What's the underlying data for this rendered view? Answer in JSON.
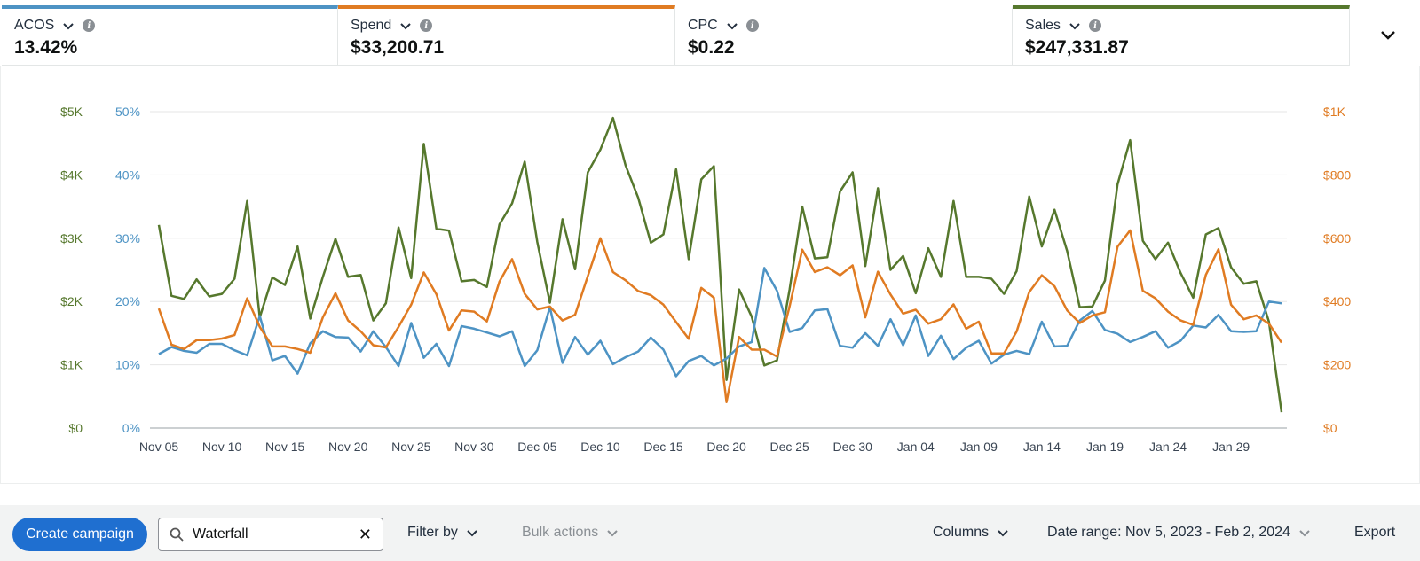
{
  "metrics": [
    {
      "label": "ACOS",
      "value": "13.42%",
      "color": "#4d93c4"
    },
    {
      "label": "Spend",
      "value": "$33,200.71",
      "color": "#e07b22"
    },
    {
      "label": "CPC",
      "value": "$0.22",
      "color": "#ffffff"
    },
    {
      "label": "Sales",
      "value": "$247,331.87",
      "color": "#56782d"
    }
  ],
  "icons": {
    "chevron": "chevron-down-icon",
    "info": "info-icon",
    "search": "search-icon",
    "clear": "close-icon"
  },
  "toolbar": {
    "create_label": "Create campaign",
    "search_value": "Waterfall",
    "filter_label": "Filter by",
    "bulk_label": "Bulk actions",
    "columns_label": "Columns",
    "date_range_label": "Date range: Nov 5, 2023 - Feb 2, 2024",
    "export_label": "Export"
  },
  "chart_data": {
    "type": "line",
    "x": [
      "Nov 05",
      "Nov 06",
      "Nov 07",
      "Nov 08",
      "Nov 09",
      "Nov 10",
      "Nov 11",
      "Nov 12",
      "Nov 13",
      "Nov 14",
      "Nov 15",
      "Nov 16",
      "Nov 17",
      "Nov 18",
      "Nov 19",
      "Nov 20",
      "Nov 21",
      "Nov 22",
      "Nov 23",
      "Nov 24",
      "Nov 25",
      "Nov 26",
      "Nov 27",
      "Nov 28",
      "Nov 29",
      "Nov 30",
      "Dec 01",
      "Dec 02",
      "Dec 03",
      "Dec 04",
      "Dec 05",
      "Dec 06",
      "Dec 07",
      "Dec 08",
      "Dec 09",
      "Dec 10",
      "Dec 11",
      "Dec 12",
      "Dec 13",
      "Dec 14",
      "Dec 15",
      "Dec 16",
      "Dec 17",
      "Dec 18",
      "Dec 19",
      "Dec 20",
      "Dec 21",
      "Dec 22",
      "Dec 23",
      "Dec 24",
      "Dec 25",
      "Dec 26",
      "Dec 27",
      "Dec 28",
      "Dec 29",
      "Dec 30",
      "Dec 31",
      "Jan 01",
      "Jan 02",
      "Jan 03",
      "Jan 04",
      "Jan 05",
      "Jan 06",
      "Jan 07",
      "Jan 08",
      "Jan 09",
      "Jan 10",
      "Jan 11",
      "Jan 12",
      "Jan 13",
      "Jan 14",
      "Jan 15",
      "Jan 16",
      "Jan 17",
      "Jan 18",
      "Jan 19",
      "Jan 20",
      "Jan 21",
      "Jan 22",
      "Jan 23",
      "Jan 24",
      "Jan 25",
      "Jan 26",
      "Jan 27",
      "Jan 28",
      "Jan 29",
      "Jan 30",
      "Jan 31",
      "Feb 01",
      "Feb 02"
    ],
    "tick_labels": [
      "Nov 05",
      "Nov 10",
      "Nov 15",
      "Nov 20",
      "Nov 25",
      "Nov 30",
      "Dec 05",
      "Dec 10",
      "Dec 15",
      "Dec 20",
      "Dec 25",
      "Dec 30",
      "Jan 04",
      "Jan 09",
      "Jan 14",
      "Jan 19",
      "Jan 24",
      "Jan 29"
    ],
    "axes": {
      "sales": {
        "ticks": [
          "$0",
          "$1K",
          "$2K",
          "$3K",
          "$4K",
          "$5K"
        ],
        "ylim": [
          0,
          5000
        ]
      },
      "acos": {
        "ticks": [
          "0%",
          "10%",
          "20%",
          "30%",
          "40%",
          "50%"
        ],
        "ylim": [
          0,
          50
        ]
      },
      "spend": {
        "ticks": [
          "$0",
          "$200",
          "$400",
          "$600",
          "$800",
          "$1K"
        ],
        "ylim": [
          0,
          1000
        ]
      }
    },
    "grid": true,
    "series": [
      {
        "name": "Sales",
        "axis": "sales",
        "color": "#56782d",
        "values": [
          3210,
          2090,
          2040,
          2350,
          2080,
          2120,
          2360,
          3590,
          1750,
          2380,
          2260,
          2870,
          1730,
          2390,
          2990,
          2390,
          2420,
          1700,
          1970,
          3170,
          2370,
          4490,
          3150,
          3120,
          2320,
          2340,
          2230,
          3220,
          3550,
          4210,
          2940,
          1980,
          3300,
          2510,
          4040,
          4400,
          4900,
          4150,
          3640,
          2930,
          3060,
          4090,
          2670,
          3930,
          4140,
          760,
          2190,
          1760,
          990,
          1070,
          2190,
          3500,
          2680,
          2700,
          3740,
          4040,
          2560,
          3790,
          2500,
          2720,
          2130,
          2840,
          2390,
          3590,
          2390,
          2390,
          2360,
          2120,
          2480,
          3660,
          2870,
          3450,
          2800,
          1910,
          1920,
          2330,
          3850,
          4550,
          2960,
          2670,
          2930,
          2450,
          2060,
          3060,
          3160,
          2540,
          2280,
          2320,
          1680,
          250
        ]
      },
      {
        "name": "ACOS",
        "axis": "acos",
        "color": "#4d93c4",
        "values": [
          11.7,
          12.8,
          12.2,
          11.9,
          13.3,
          13.3,
          12.3,
          11.5,
          17.7,
          10.7,
          11.4,
          8.6,
          13.4,
          15.3,
          14.4,
          14.3,
          12.1,
          15.3,
          12.8,
          9.8,
          16.6,
          11.1,
          13.3,
          9.8,
          16.1,
          15.7,
          15.1,
          14.5,
          15.3,
          9.8,
          12.3,
          19.1,
          10.3,
          14.4,
          11.6,
          13.8,
          10.1,
          11.2,
          12.1,
          14.3,
          12.4,
          8.2,
          10.6,
          11.4,
          9.9,
          11.0,
          12.9,
          13.6,
          25.3,
          21.7,
          15.2,
          15.8,
          18.6,
          18.8,
          13.0,
          12.7,
          15.0,
          13.0,
          17.2,
          13.1,
          17.8,
          11.4,
          14.6,
          10.9,
          12.7,
          13.8,
          10.2,
          11.6,
          12.2,
          11.7,
          16.8,
          12.9,
          13.0,
          17.0,
          18.5,
          15.5,
          14.9,
          13.6,
          14.4,
          15.3,
          12.7,
          13.8,
          16.2,
          15.9,
          17.9,
          15.3,
          15.2,
          15.3,
          20.0,
          19.7
        ]
      },
      {
        "name": "Spend",
        "axis": "spend",
        "color": "#e07b22",
        "values": [
          378,
          264,
          250,
          278,
          278,
          283,
          294,
          410,
          320,
          258,
          258,
          250,
          238,
          350,
          426,
          340,
          306,
          262,
          255,
          320,
          390,
          492,
          423,
          308,
          372,
          368,
          337,
          463,
          534,
          424,
          375,
          384,
          340,
          358,
          480,
          600,
          493,
          467,
          433,
          420,
          390,
          335,
          282,
          443,
          412,
          82,
          288,
          248,
          248,
          226,
          385,
          564,
          493,
          508,
          483,
          514,
          350,
          494,
          422,
          362,
          374,
          330,
          344,
          391,
          314,
          336,
          236,
          236,
          305,
          430,
          483,
          448,
          372,
          332,
          356,
          366,
          573,
          625,
          434,
          410,
          368,
          340,
          326,
          484,
          565,
          390,
          344,
          356,
          330,
          270
        ]
      }
    ]
  }
}
